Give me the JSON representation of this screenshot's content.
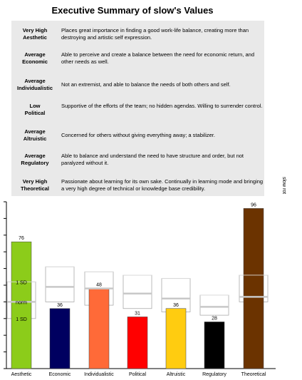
{
  "title": "Executive Summary of slow's Values",
  "side_label": "slow rot",
  "summary": [
    {
      "level": "Very High",
      "name": "Aesthetic",
      "desc": "Places great importance in finding a good work-life balance, creating more than destroying and artistic self expression."
    },
    {
      "level": "Average",
      "name": "Economic",
      "desc": "Able to perceive and create a balance between the need for economic return, and other needs as well."
    },
    {
      "level": "Average",
      "name": "Individualistic",
      "desc": "Not an extremist, and able to balance the needs of both others and self."
    },
    {
      "level": "Low",
      "name": "Political",
      "desc": "Supportive of the efforts of the team; no hidden agendas. Willing to surrender control."
    },
    {
      "level": "Average",
      "name": "Altruistic",
      "desc": "Concerned for others without giving everything away; a stabilizer."
    },
    {
      "level": "Average",
      "name": "Regulatory",
      "desc": "Able to balance and understand the need to have structure and order, but not paralyzed without it."
    },
    {
      "level": "Very High",
      "name": "Theoretical",
      "desc": "Passionate about learning for its own sake. Continually in learning mode and bringing a very high degree of technical or knowledge base credibility."
    }
  ],
  "chart_data": {
    "type": "bar",
    "categories": [
      "Aesthetic",
      "Economic",
      "Individualistic",
      "Political",
      "Altruistic",
      "Regulatory",
      "Theoretical"
    ],
    "values": [
      76,
      36,
      48,
      31,
      36,
      28,
      96
    ],
    "colors": [
      "#8ccc1a",
      "#000060",
      "#ff6a38",
      "#ff0000",
      "#ffcc10",
      "#000000",
      "#6b3300"
    ],
    "ylim": [
      0,
      100
    ],
    "norms": [
      {
        "low": 30,
        "mean": 40,
        "high": 52
      },
      {
        "low": 40,
        "mean": 49,
        "high": 61
      },
      {
        "low": 38,
        "mean": 48,
        "high": 58
      },
      {
        "low": 36,
        "mean": 45,
        "high": 56
      },
      {
        "low": 34,
        "mean": 42,
        "high": 54
      },
      {
        "low": 32,
        "mean": 37,
        "high": 44
      },
      {
        "low": 40,
        "mean": 43,
        "high": 56
      }
    ],
    "norm_labels": [
      "1 SD",
      "norm",
      "1 SD"
    ],
    "grid": false
  }
}
